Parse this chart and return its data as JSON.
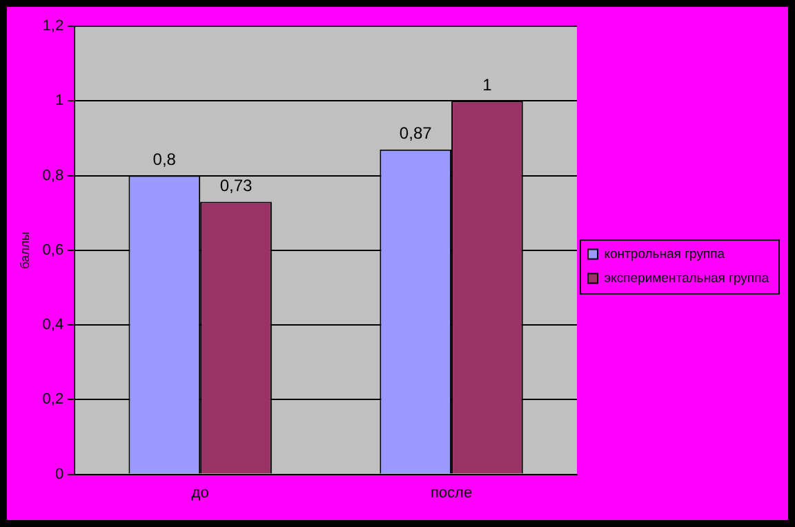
{
  "chart_data": {
    "type": "bar",
    "ylabel": "баллы",
    "categories": [
      "до",
      "после"
    ],
    "series": [
      {
        "name": "контрольная группа",
        "color": "#9999ff",
        "values": [
          0.8,
          0.87
        ],
        "value_labels": [
          "0,8",
          "0,87"
        ]
      },
      {
        "name": "экспериментальная группа",
        "color": "#993366",
        "values": [
          0.73,
          1
        ],
        "value_labels": [
          "0,73",
          "1"
        ]
      }
    ],
    "ylim": [
      0,
      1.2
    ],
    "yticks": [
      {
        "value": 0,
        "label": "0"
      },
      {
        "value": 0.2,
        "label": "0,2"
      },
      {
        "value": 0.4,
        "label": "0,4"
      },
      {
        "value": 0.6,
        "label": "0,6"
      },
      {
        "value": 0.8,
        "label": "0,8"
      },
      {
        "value": 1,
        "label": "1"
      },
      {
        "value": 1.2,
        "label": "1,2"
      }
    ],
    "grid": "y",
    "legend": "right"
  }
}
